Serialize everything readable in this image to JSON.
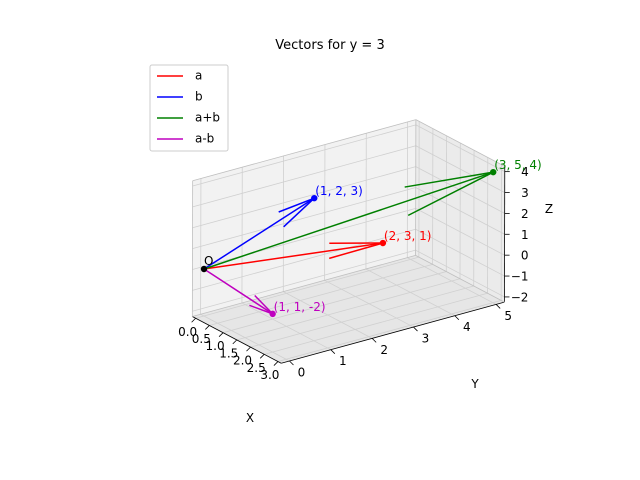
{
  "chart_data": {
    "type": "3d-vector",
    "title": "Vectors for y = 3",
    "xlabel": "X",
    "ylabel": "Y",
    "zlabel": "Z",
    "xlim": [
      0,
      3
    ],
    "ylim": [
      0,
      5
    ],
    "zlim": [
      -2,
      4
    ],
    "x_ticks": [
      "0.0",
      "0.5",
      "1.0",
      "1.5",
      "2.0",
      "2.5",
      "3.0"
    ],
    "y_ticks": [
      "0",
      "1",
      "2",
      "3",
      "4",
      "5"
    ],
    "z_ticks": [
      "−2",
      "−1",
      "0",
      "1",
      "2",
      "3",
      "4"
    ],
    "grid": true,
    "legend_placement": "top-left",
    "origin_label": "O",
    "series": [
      {
        "name": "a",
        "color": "#ff0000",
        "start": [
          0,
          0,
          0
        ],
        "end": [
          2,
          3,
          1
        ],
        "label": "(2, 3, 1)"
      },
      {
        "name": "b",
        "color": "#0000ff",
        "start": [
          0,
          0,
          0
        ],
        "end": [
          1,
          2,
          3
        ],
        "label": "(1, 2, 3)"
      },
      {
        "name": "a+b",
        "color": "#008000",
        "start": [
          0,
          0,
          0
        ],
        "end": [
          3,
          5,
          4
        ],
        "label": "(3, 5, 4)"
      },
      {
        "name": "a-b",
        "color": "#bf00bf",
        "start": [
          0,
          0,
          0
        ],
        "end": [
          1,
          1,
          -2
        ],
        "label": "(1, 1, -2)"
      }
    ]
  }
}
